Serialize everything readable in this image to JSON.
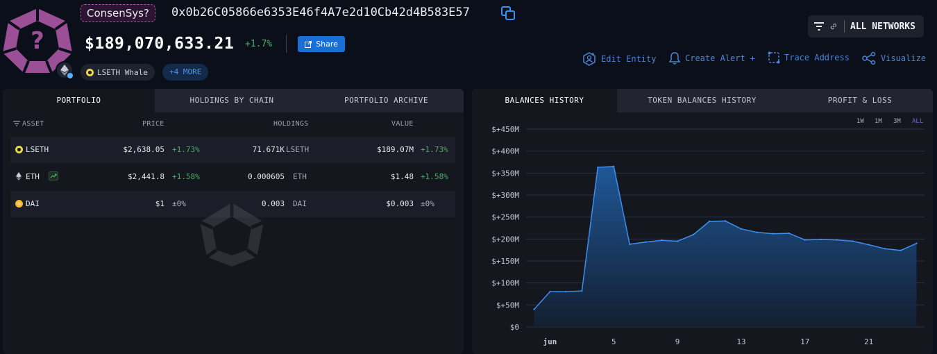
{
  "header": {
    "entity_name": "ConsenSys?",
    "address": "0x0b26C05866e6353E46f4A7e2d10Cb42d4B583E57",
    "total_value": "$189,070,633.21",
    "total_change": "+1.7%",
    "share_label": "Share",
    "tag_label": "LSETH Whale",
    "more_label": "+4 MORE",
    "network_label": "ALL NETWORKS",
    "actions": {
      "edit": "Edit Entity",
      "alert": "Create Alert +",
      "trace": "Trace Address",
      "visualize": "Visualize"
    }
  },
  "portfolio": {
    "tabs": [
      "PORTFOLIO",
      "HOLDINGS BY CHAIN",
      "PORTFOLIO ARCHIVE"
    ],
    "active_tab": 0,
    "columns": {
      "asset": "ASSET",
      "price": "PRICE",
      "holdings": "HOLDINGS",
      "value": "VALUE"
    },
    "rows": [
      {
        "symbol": "LSETH",
        "price": "$2,638.05",
        "price_change": "+1.73%",
        "holdings": "71.671K",
        "holdings_unit": "LSETH",
        "value": "$189.07M",
        "value_change": "+1.73%"
      },
      {
        "symbol": "ETH",
        "price": "$2,441.8",
        "price_change": "+1.58%",
        "holdings": "0.000605",
        "holdings_unit": "ETH",
        "value": "$1.48",
        "value_change": "+1.58%"
      },
      {
        "symbol": "DAI",
        "price": "$1",
        "price_change": "±0%",
        "holdings": "0.003",
        "holdings_unit": "DAI",
        "value": "$0.003",
        "value_change": "±0%"
      }
    ]
  },
  "history": {
    "tabs": [
      "BALANCES HISTORY",
      "TOKEN BALANCES HISTORY",
      "PROFIT & LOSS"
    ],
    "active_tab": 0,
    "timeframes": [
      "1W",
      "1M",
      "3M",
      "ALL"
    ],
    "active_timeframe": "ALL"
  },
  "chart_data": {
    "type": "area",
    "y_ticks": [
      "$0",
      "$+50M",
      "$+100M",
      "$+150M",
      "$+200M",
      "$+250M",
      "$+300M",
      "$+350M",
      "$+400M",
      "$+450M"
    ],
    "ylim": [
      0,
      450
    ],
    "y_unit": "$M",
    "x_ticks": [
      {
        "label": "jun",
        "day": 1
      },
      {
        "label": "5",
        "day": 5
      },
      {
        "label": "9",
        "day": 9
      },
      {
        "label": "13",
        "day": 13
      },
      {
        "label": "17",
        "day": 17
      },
      {
        "label": "21",
        "day": 21
      }
    ],
    "xlim": [
      -0.5,
      24.5
    ],
    "series": [
      {
        "x": [
          0,
          1,
          2,
          3,
          4,
          5,
          6,
          7,
          8,
          9,
          10,
          11,
          12,
          13,
          14,
          15,
          16,
          17,
          18,
          19,
          20,
          21,
          22,
          23,
          24
        ],
        "values": [
          40,
          80,
          80,
          82,
          363,
          365,
          188,
          193,
          197,
          195,
          210,
          240,
          241,
          223,
          215,
          212,
          213,
          198,
          199,
          198,
          195,
          187,
          178,
          174,
          190
        ]
      }
    ],
    "colors": {
      "line": "#3d8ef0",
      "fill_top": "#1f5b9e",
      "fill_bottom": "#132033",
      "grid": "#2e3240"
    },
    "grid": true
  },
  "colors": {
    "accent": "#1a6fd6",
    "positive": "#4caf6a",
    "link": "#4b86d6",
    "entity_purple": "#9b4f96"
  }
}
